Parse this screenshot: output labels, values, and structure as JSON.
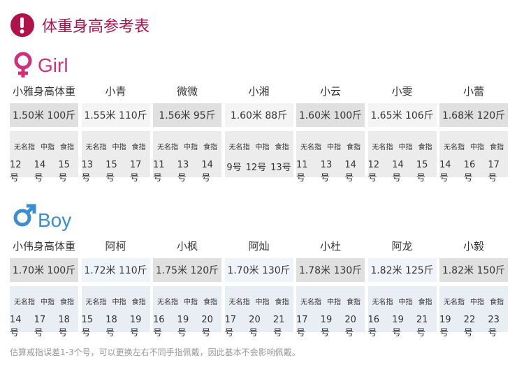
{
  "header": {
    "title": "体重身高参考表"
  },
  "sections": [
    {
      "label": "Girl",
      "columns": [
        {
          "name": "小雅身高体重",
          "stats": "1.50米 100斤",
          "fingers": [
            "无名指",
            "中指",
            "食指"
          ],
          "sizes": [
            "12号",
            "14号",
            "15号"
          ]
        },
        {
          "name": "小青",
          "stats": "1.55米 110斤",
          "fingers": [
            "无名指",
            "中指",
            "食指"
          ],
          "sizes": [
            "13号",
            "15号",
            "17号"
          ]
        },
        {
          "name": "微微",
          "stats": "1.56米 95斤",
          "fingers": [
            "无名指",
            "中指",
            "食指"
          ],
          "sizes": [
            "11号",
            "13号",
            "14号"
          ]
        },
        {
          "name": "小湘",
          "stats": "1.60米 88斤",
          "fingers": [
            "无名指",
            "中指",
            "食指"
          ],
          "sizes": [
            "9号",
            "12号",
            "13号"
          ]
        },
        {
          "name": "小云",
          "stats": "1.60米 100斤",
          "fingers": [
            "无名指",
            "中指",
            "食指"
          ],
          "sizes": [
            "11号",
            "13号",
            "14号"
          ]
        },
        {
          "name": "小雯",
          "stats": "1.65米 106斤",
          "fingers": [
            "无名指",
            "中指",
            "食指"
          ],
          "sizes": [
            "12号",
            "14号",
            "15号"
          ]
        },
        {
          "name": "小蕾",
          "stats": "1.68米 120斤",
          "fingers": [
            "无名指",
            "中指",
            "食指"
          ],
          "sizes": [
            "14号",
            "16号",
            "17号"
          ]
        }
      ]
    },
    {
      "label": "Boy",
      "columns": [
        {
          "name": "小伟身高体重",
          "stats": "1.70米 100斤",
          "fingers": [
            "无名指",
            "中指",
            "食指"
          ],
          "sizes": [
            "14号",
            "17号",
            "18号"
          ]
        },
        {
          "name": "阿柯",
          "stats": "1.72米 110斤",
          "fingers": [
            "无名指",
            "中指",
            "食指"
          ],
          "sizes": [
            "15号",
            "18号",
            "19号"
          ]
        },
        {
          "name": "小枫",
          "stats": "1.75米 120斤",
          "fingers": [
            "无名指",
            "中指",
            "食指"
          ],
          "sizes": [
            "16号",
            "19号",
            "20号"
          ]
        },
        {
          "name": "阿灿",
          "stats": "1.70米 130斤",
          "fingers": [
            "无名指",
            "中指",
            "食指"
          ],
          "sizes": [
            "17号",
            "20号",
            "21号"
          ]
        },
        {
          "name": "小杜",
          "stats": "1.78米 130斤",
          "fingers": [
            "无名指",
            "中指",
            "食指"
          ],
          "sizes": [
            "17号",
            "19号",
            "20号"
          ]
        },
        {
          "name": "阿龙",
          "stats": "1.82米 125斤",
          "fingers": [
            "无名指",
            "中指",
            "食指"
          ],
          "sizes": [
            "16号",
            "19号",
            "21号"
          ]
        },
        {
          "name": "小毅",
          "stats": "1.82米 150斤",
          "fingers": [
            "无名指",
            "中指",
            "食指"
          ],
          "sizes": [
            "19号",
            "22号",
            "23号"
          ]
        }
      ]
    }
  ],
  "note": "估算戒指误差1-3个号，可以更换左右不同手指佩戴，因此基本不会影响佩戴。"
}
